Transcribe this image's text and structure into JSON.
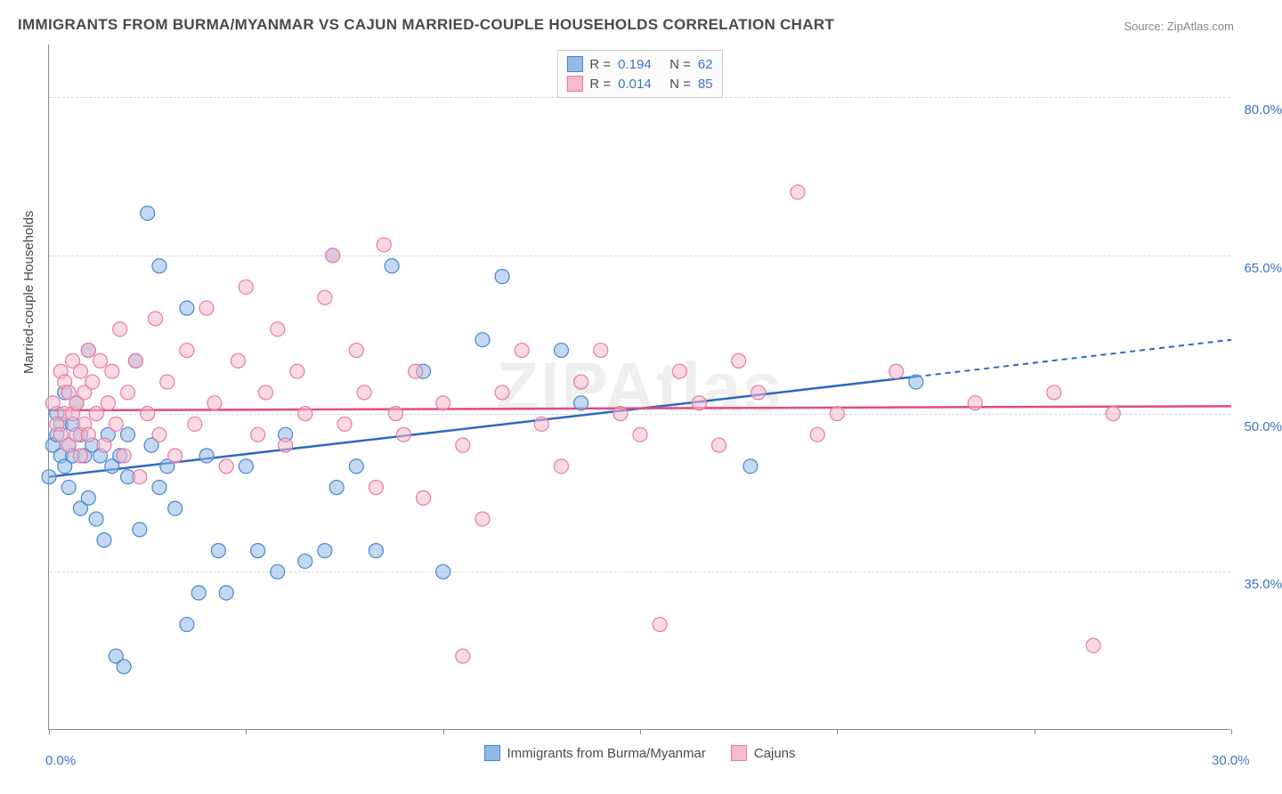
{
  "title": "IMMIGRANTS FROM BURMA/MYANMAR VS CAJUN MARRIED-COUPLE HOUSEHOLDS CORRELATION CHART",
  "source_prefix": "Source: ",
  "source_name": "ZipAtlas.com",
  "ylabel": "Married-couple Households",
  "watermark": "ZIPAtlas",
  "chart": {
    "type": "scatter",
    "xlim": [
      0,
      30
    ],
    "ylim": [
      20,
      85
    ],
    "x_ticks": [
      0,
      5,
      10,
      15,
      20,
      25,
      30
    ],
    "x_tick_labels": {
      "0": "0.0%",
      "30": "30.0%"
    },
    "y_gridlines": [
      35,
      50,
      65,
      80
    ],
    "y_tick_labels": {
      "35": "35.0%",
      "50": "50.0%",
      "65": "65.0%",
      "80": "80.0%"
    },
    "tick_label_color": "#3b74c4",
    "background_color": "#ffffff",
    "grid_color": "#d8d8d8",
    "axis_color": "#888888",
    "marker_radius": 8,
    "marker_opacity": 0.55,
    "series": [
      {
        "name": "Immigrants from Burma/Myanmar",
        "fill_color": "#8fb9e6",
        "stroke_color": "#4a86d0",
        "line_color": "#2d68c4",
        "R": "0.194",
        "N": "62",
        "regression": {
          "x1": 0,
          "y1": 44,
          "x2": 22,
          "y2": 53.5,
          "x3": 30,
          "y3": 57
        },
        "points": [
          [
            0.0,
            44
          ],
          [
            0.1,
            47
          ],
          [
            0.2,
            50
          ],
          [
            0.2,
            48
          ],
          [
            0.3,
            46
          ],
          [
            0.3,
            49
          ],
          [
            0.4,
            45
          ],
          [
            0.4,
            52
          ],
          [
            0.5,
            47
          ],
          [
            0.5,
            43
          ],
          [
            0.6,
            49
          ],
          [
            0.6,
            46
          ],
          [
            0.7,
            51
          ],
          [
            0.8,
            41
          ],
          [
            0.8,
            48
          ],
          [
            0.9,
            46
          ],
          [
            1.0,
            56
          ],
          [
            1.0,
            42
          ],
          [
            1.1,
            47
          ],
          [
            1.2,
            40
          ],
          [
            1.3,
            46
          ],
          [
            1.4,
            38
          ],
          [
            1.5,
            48
          ],
          [
            1.6,
            45
          ],
          [
            1.7,
            27
          ],
          [
            1.8,
            46
          ],
          [
            1.9,
            26
          ],
          [
            2.0,
            44
          ],
          [
            2.0,
            48
          ],
          [
            2.2,
            55
          ],
          [
            2.3,
            39
          ],
          [
            2.5,
            69
          ],
          [
            2.6,
            47
          ],
          [
            2.8,
            43
          ],
          [
            2.8,
            64
          ],
          [
            3.0,
            45
          ],
          [
            3.2,
            41
          ],
          [
            3.5,
            30
          ],
          [
            3.5,
            60
          ],
          [
            3.8,
            33
          ],
          [
            4.0,
            46
          ],
          [
            4.3,
            37
          ],
          [
            4.5,
            33
          ],
          [
            5.0,
            45
          ],
          [
            5.3,
            37
          ],
          [
            5.8,
            35
          ],
          [
            6.0,
            48
          ],
          [
            6.5,
            36
          ],
          [
            7.0,
            37
          ],
          [
            7.2,
            65
          ],
          [
            7.3,
            43
          ],
          [
            7.8,
            45
          ],
          [
            8.3,
            37
          ],
          [
            8.7,
            64
          ],
          [
            9.5,
            54
          ],
          [
            10.0,
            35
          ],
          [
            11.0,
            57
          ],
          [
            11.5,
            63
          ],
          [
            13.0,
            56
          ],
          [
            13.5,
            51
          ],
          [
            17.8,
            45
          ],
          [
            22.0,
            53
          ]
        ]
      },
      {
        "name": "Cajuns",
        "fill_color": "#f4bacd",
        "stroke_color": "#e57ca0",
        "line_color": "#e14a82",
        "R": "0.014",
        "N": "85",
        "regression": {
          "x1": 0,
          "y1": 50.3,
          "x2": 30,
          "y2": 50.7
        },
        "points": [
          [
            0.1,
            51
          ],
          [
            0.2,
            49
          ],
          [
            0.3,
            54
          ],
          [
            0.3,
            48
          ],
          [
            0.4,
            50
          ],
          [
            0.4,
            53
          ],
          [
            0.5,
            47
          ],
          [
            0.5,
            52
          ],
          [
            0.6,
            50
          ],
          [
            0.6,
            55
          ],
          [
            0.7,
            48
          ],
          [
            0.7,
            51
          ],
          [
            0.8,
            54
          ],
          [
            0.8,
            46
          ],
          [
            0.9,
            52
          ],
          [
            0.9,
            49
          ],
          [
            1.0,
            56
          ],
          [
            1.0,
            48
          ],
          [
            1.1,
            53
          ],
          [
            1.2,
            50
          ],
          [
            1.3,
            55
          ],
          [
            1.4,
            47
          ],
          [
            1.5,
            51
          ],
          [
            1.6,
            54
          ],
          [
            1.7,
            49
          ],
          [
            1.8,
            58
          ],
          [
            1.9,
            46
          ],
          [
            2.0,
            52
          ],
          [
            2.2,
            55
          ],
          [
            2.3,
            44
          ],
          [
            2.5,
            50
          ],
          [
            2.7,
            59
          ],
          [
            2.8,
            48
          ],
          [
            3.0,
            53
          ],
          [
            3.2,
            46
          ],
          [
            3.5,
            56
          ],
          [
            3.7,
            49
          ],
          [
            4.0,
            60
          ],
          [
            4.2,
            51
          ],
          [
            4.5,
            45
          ],
          [
            4.8,
            55
          ],
          [
            5.0,
            62
          ],
          [
            5.3,
            48
          ],
          [
            5.5,
            52
          ],
          [
            5.8,
            58
          ],
          [
            6.0,
            47
          ],
          [
            6.3,
            54
          ],
          [
            6.5,
            50
          ],
          [
            7.0,
            61
          ],
          [
            7.2,
            65
          ],
          [
            7.5,
            49
          ],
          [
            7.8,
            56
          ],
          [
            8.0,
            52
          ],
          [
            8.3,
            43
          ],
          [
            8.5,
            66
          ],
          [
            8.8,
            50
          ],
          [
            9.0,
            48
          ],
          [
            9.3,
            54
          ],
          [
            9.5,
            42
          ],
          [
            10.0,
            51
          ],
          [
            10.5,
            47
          ],
          [
            10.5,
            27
          ],
          [
            11.0,
            40
          ],
          [
            11.5,
            52
          ],
          [
            12.0,
            56
          ],
          [
            12.5,
            49
          ],
          [
            13.0,
            45
          ],
          [
            13.5,
            53
          ],
          [
            14.0,
            56
          ],
          [
            14.5,
            50
          ],
          [
            15.0,
            48
          ],
          [
            15.5,
            30
          ],
          [
            16.0,
            54
          ],
          [
            16.5,
            51
          ],
          [
            17.0,
            47
          ],
          [
            17.5,
            55
          ],
          [
            18.0,
            52
          ],
          [
            19.0,
            71
          ],
          [
            19.5,
            48
          ],
          [
            20.0,
            50
          ],
          [
            21.5,
            54
          ],
          [
            23.5,
            51
          ],
          [
            25.5,
            52
          ],
          [
            26.5,
            28
          ],
          [
            27.0,
            50
          ]
        ]
      }
    ]
  },
  "legend_top": {
    "r_label": "R  =",
    "n_label": "N  =",
    "value_color": "#3b74c4",
    "text_color": "#4a4a4a"
  }
}
